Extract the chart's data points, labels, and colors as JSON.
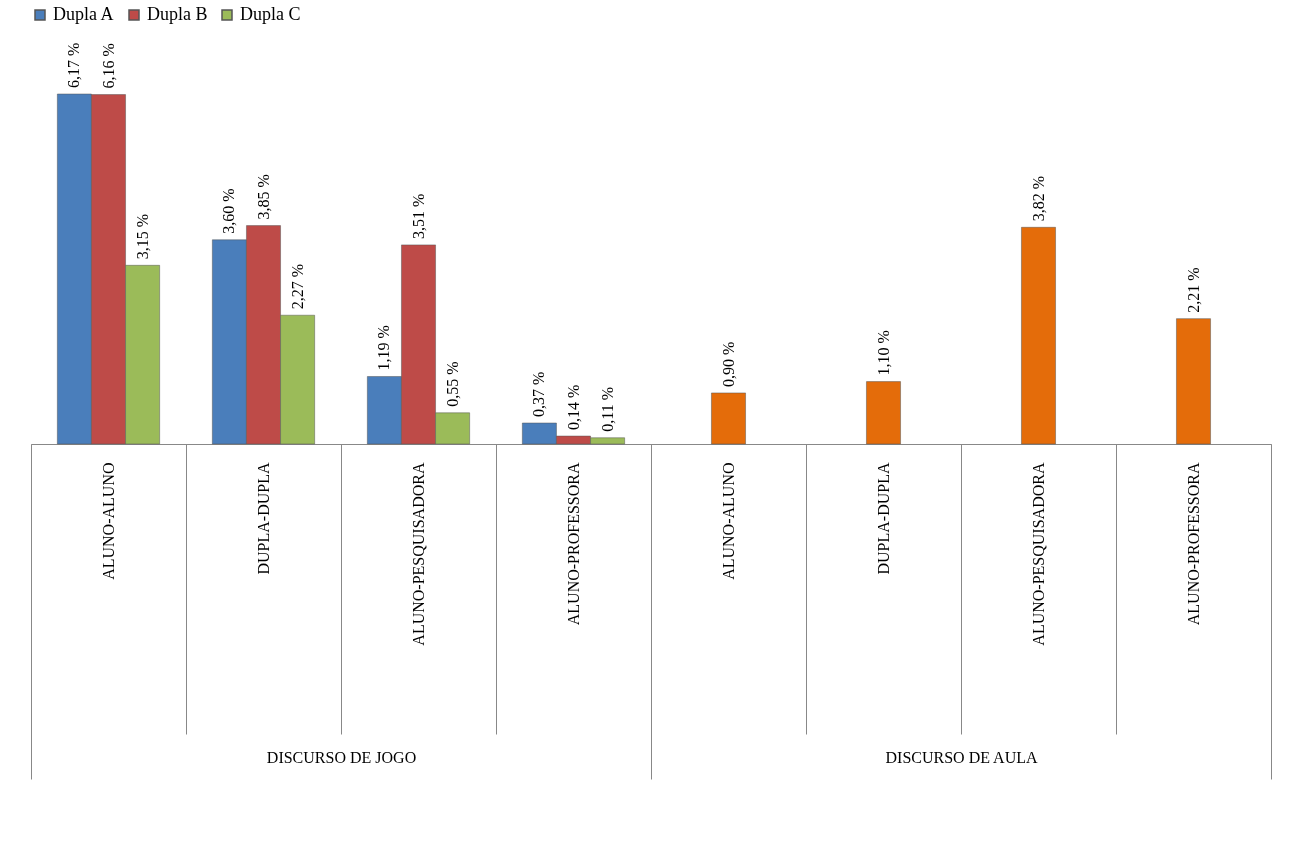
{
  "chart_data": {
    "type": "bar",
    "categories": [
      "ALUNO-ALUNO",
      "DUPLA-DUPLA",
      "ALUNO-PESQUISADORA",
      "ALUNO-PROFESSORA",
      "ALUNO-ALUNO",
      "DUPLA-DUPLA",
      "ALUNO-PESQUISADORA",
      "ALUNO-PROFESSORA"
    ],
    "series": [
      {
        "name": "Dupla A",
        "color": "#4a7ebb",
        "values": [
          6.17,
          3.6,
          1.19,
          0.37,
          null,
          null,
          null,
          null
        ],
        "value_labels": [
          "6,17 %",
          "3,60 %",
          "1,19 %",
          "0,37 %",
          null,
          null,
          null,
          null
        ]
      },
      {
        "name": "Dupla B",
        "color": "#be4b48",
        "values": [
          6.16,
          3.85,
          3.51,
          0.14,
          null,
          null,
          null,
          null
        ],
        "value_labels": [
          "6,16 %",
          "3,85 %",
          "3,51 %",
          "0,14 %",
          null,
          null,
          null,
          null
        ]
      },
      {
        "name": "Dupla C",
        "color": "#9bbb59",
        "values": [
          3.15,
          2.27,
          0.55,
          0.11,
          null,
          null,
          null,
          null
        ],
        "value_labels": [
          "3,15 %",
          "2,27 %",
          "0,55 %",
          "0,11 %",
          null,
          null,
          null,
          null
        ]
      },
      {
        "color": "#e46c0a",
        "values": [
          null,
          null,
          null,
          null,
          0.9,
          1.1,
          3.82,
          2.21
        ],
        "value_labels": [
          null,
          null,
          null,
          null,
          "0,90 %",
          "1,10 %",
          "3,82 %",
          "2,21 %"
        ]
      }
    ],
    "annotations": [
      "DISCURSO DE JOGO",
      "DISCURSO DE AULA"
    ],
    "legend": "top",
    "grid": false
  }
}
